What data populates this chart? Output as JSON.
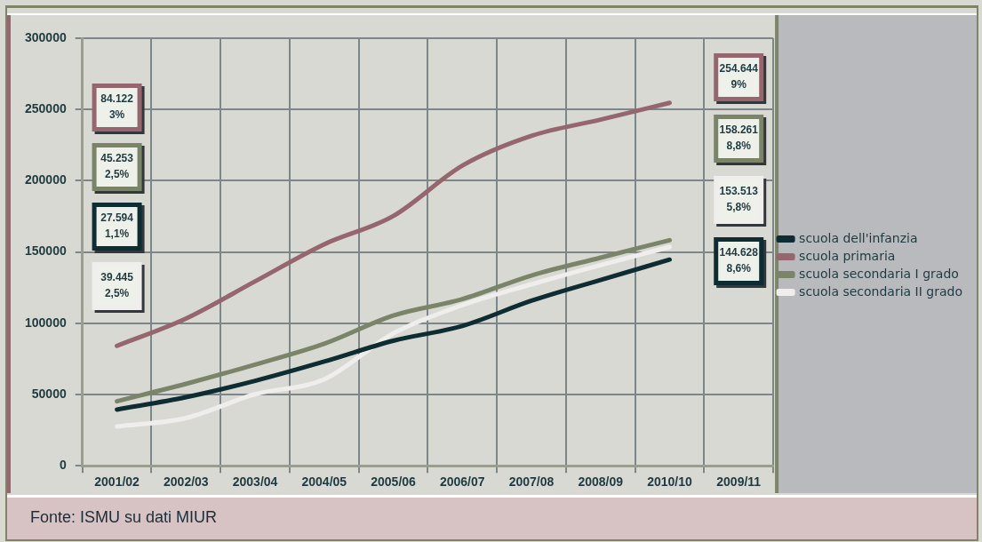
{
  "chart_data": {
    "type": "line",
    "categories": [
      "2001/02",
      "2002/03",
      "2003/04",
      "2004/05",
      "2005/06",
      "2006/07",
      "2007/08",
      "2008/09",
      "2010/10",
      "2009/11"
    ],
    "series": [
      {
        "name": "scuola dell'infanzia",
        "color": "#0d2d33",
        "values": [
          39445,
          48100,
          59600,
          73100,
          87700,
          98100,
          115800,
          130400,
          144628,
          null
        ]
      },
      {
        "name": "scuola primaria",
        "color": "#96666f",
        "values": [
          84122,
          103300,
          129400,
          155400,
          175200,
          210600,
          231500,
          242900,
          254644,
          null
        ]
      },
      {
        "name": "scuola secondaria I grado",
        "color": "#7a8468",
        "values": [
          45253,
          57500,
          71000,
          85600,
          105400,
          116900,
          133500,
          146000,
          158261,
          null
        ]
      },
      {
        "name": "scuola secondaria II grado",
        "color": "#f0eeec",
        "values": [
          27594,
          33500,
          50200,
          60600,
          92900,
          112700,
          127300,
          140800,
          153513,
          null
        ]
      }
    ],
    "ylim": [
      0,
      300000
    ],
    "yticks": [
      0,
      50000,
      100000,
      150000,
      200000,
      250000,
      300000
    ],
    "grid": true,
    "legend": "right",
    "marker": "none",
    "line_style": "solid",
    "annotations": [
      "84.122\n3%",
      "45.253\n2,5%",
      "27.594\n1,1%",
      "39.445\n2,5%",
      "254.644\n9%",
      "158.261\n8,8%",
      "153.513\n5,8%",
      "144.628\n8,6%",
      "Fonte: ISMU su dati MIUR"
    ]
  }
}
